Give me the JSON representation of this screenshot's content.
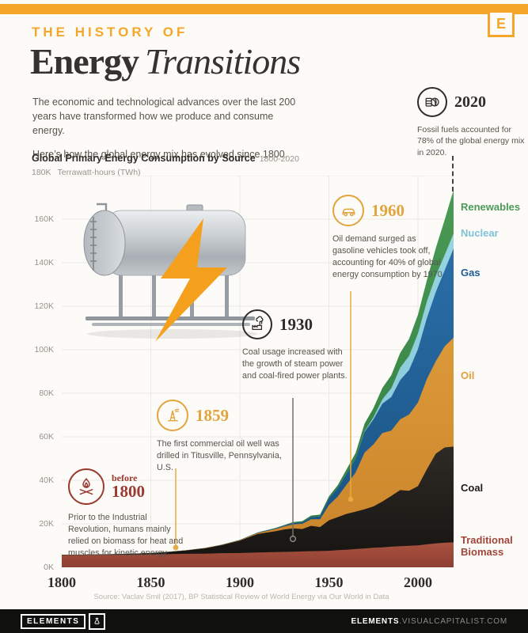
{
  "brand": {
    "e_letter": "E",
    "footer_logo_text": "ELEMENTS",
    "footer_url_bold": "ELEMENTS",
    "footer_url_rest": ".VISUALCAPITALIST.COM"
  },
  "header": {
    "kicker": "THE HISTORY OF",
    "title_bold": "Energy",
    "title_italic": "Transitions"
  },
  "intro": {
    "p1": "The economic and technological advances over the last 200 years have transformed how we produce and consume energy.",
    "p2": "Here’s how the global energy mix has evolved since 1800."
  },
  "annotations": {
    "before_1800": {
      "pre": "before",
      "year": "1800",
      "text": "Prior to the Industrial Revolution, humans mainly relied on biomass for heat and muscles for kinetic energy.",
      "color": "#9A3B32"
    },
    "y1859": {
      "year": "1859",
      "text": "The first commercial oil well was drilled in Titusville, Pennsylvania, U.S.",
      "color": "#E2A43C"
    },
    "y1930": {
      "year": "1930",
      "text": "Coal usage increased with the growth of steam power and coal-fired power plants.",
      "color": "#2E2C29"
    },
    "y1960": {
      "year": "1960",
      "text": "Oil demand surged as gasoline vehicles took off, accounting for 40% of global energy consumption by 1970.",
      "color": "#E2A43C"
    },
    "y2020": {
      "year": "2020",
      "text": "Fossil fuels accounted for 78% of the global energy mix in 2020.",
      "color": "#2E2C29"
    }
  },
  "legend": [
    {
      "key": "renewables",
      "label": "Renewables",
      "color": "#4C9A57"
    },
    {
      "key": "nuclear",
      "label": "Nuclear",
      "color": "#7EC3D8"
    },
    {
      "key": "gas",
      "label": "Gas",
      "color": "#1D5C94"
    },
    {
      "key": "oil",
      "label": "Oil",
      "color": "#DFA13C"
    },
    {
      "key": "coal",
      "label": "Coal",
      "color": "#1D1C1A"
    },
    {
      "key": "biomass",
      "label": "Traditional Biomass",
      "color": "#A0453A"
    }
  ],
  "source": {
    "text": "Source: Vaclav Smil (2017), BP Statistical Review of World Energy via Our World in Data"
  },
  "chart_data": {
    "type": "area",
    "stacked": true,
    "title": "Global Primary Energy Consumption by Source",
    "subtitle": "1800-2020",
    "ylabel": "Terrawatt-hours (TWh)",
    "xlim": [
      1800,
      2020
    ],
    "ylim_twh": [
      0,
      180000
    ],
    "grid": true,
    "legend_position": "right",
    "y_ticks": [
      "0K",
      "20K",
      "40K",
      "60K",
      "80K",
      "100K",
      "120K",
      "140K",
      "160K",
      "180K"
    ],
    "x_ticks": [
      "1800",
      "1850",
      "1900",
      "1950",
      "2000"
    ],
    "unit": "thousand TWh",
    "x": [
      1800,
      1810,
      1820,
      1830,
      1840,
      1850,
      1860,
      1870,
      1880,
      1890,
      1900,
      1910,
      1920,
      1925,
      1930,
      1935,
      1940,
      1945,
      1950,
      1955,
      1960,
      1965,
      1970,
      1975,
      1980,
      1985,
      1990,
      1995,
      2000,
      2005,
      2010,
      2015,
      2020
    ],
    "series": [
      {
        "name": "Traditional Biomass",
        "key": "biomass",
        "color": "#9E493C",
        "values": [
          5.6,
          5.7,
          5.8,
          5.8,
          5.9,
          6.0,
          6.1,
          6.2,
          6.3,
          6.5,
          6.6,
          6.8,
          7.0,
          7.1,
          7.2,
          7.3,
          7.4,
          7.5,
          7.6,
          7.9,
          8.1,
          8.4,
          8.7,
          9.0,
          9.2,
          9.5,
          9.7,
          9.9,
          10.1,
          10.6,
          11.0,
          11.3,
          11.5
        ]
      },
      {
        "name": "Coal",
        "key": "coal",
        "color": "#221F1C",
        "values": [
          0.1,
          0.12,
          0.18,
          0.25,
          0.35,
          0.55,
          1.0,
          1.6,
          2.4,
          3.7,
          5.7,
          8.5,
          9.6,
          10.3,
          10.7,
          10.3,
          11.7,
          11.0,
          14.0,
          15.2,
          16.5,
          17.2,
          18.0,
          19.0,
          21.0,
          23.3,
          25.8,
          25.3,
          27.2,
          34.5,
          41.2,
          43.8,
          44.0
        ]
      },
      {
        "name": "Oil",
        "key": "oil",
        "color": "#D79333",
        "values": [
          0,
          0,
          0,
          0,
          0,
          0,
          0.02,
          0.06,
          0.11,
          0.16,
          0.21,
          0.5,
          1.0,
          1.4,
          1.9,
          2.4,
          3.0,
          3.6,
          7.0,
          9.5,
          13.5,
          18.0,
          26.0,
          28.5,
          31.5,
          30.0,
          32.5,
          35.0,
          38.5,
          41.5,
          42.5,
          46.5,
          50.0
        ]
      },
      {
        "name": "Gas",
        "key": "gas",
        "color": "#1E5C94",
        "values": [
          0,
          0,
          0,
          0,
          0,
          0,
          0,
          0,
          0.01,
          0.03,
          0.06,
          0.15,
          0.3,
          0.35,
          0.6,
          0.7,
          1.0,
          1.3,
          3.0,
          3.8,
          5.0,
          6.3,
          9.5,
          11.5,
          13.5,
          15.5,
          18.0,
          20.5,
          24.5,
          28.0,
          31.8,
          35.0,
          41.0
        ]
      },
      {
        "name": "Nuclear",
        "key": "nuclear",
        "color": "#8FCEDC",
        "values": [
          0,
          0,
          0,
          0,
          0,
          0,
          0,
          0,
          0,
          0,
          0,
          0,
          0,
          0,
          0,
          0,
          0,
          0,
          0,
          0.01,
          0.02,
          0.07,
          0.3,
          1.0,
          2.0,
          4.0,
          5.7,
          6.5,
          7.2,
          7.6,
          7.4,
          7.0,
          7.0
        ]
      },
      {
        "name": "Renewables",
        "key": "renewables",
        "color": "#3F8B4A",
        "values": [
          0,
          0,
          0,
          0,
          0,
          0,
          0,
          0,
          0.01,
          0.03,
          0.05,
          0.1,
          0.2,
          0.3,
          0.45,
          0.55,
          0.7,
          0.8,
          1.0,
          1.4,
          2.0,
          2.6,
          3.5,
          4.2,
          5.2,
          6.0,
          6.8,
          7.8,
          8.6,
          9.8,
          12.8,
          16.2,
          20.0
        ]
      }
    ]
  }
}
